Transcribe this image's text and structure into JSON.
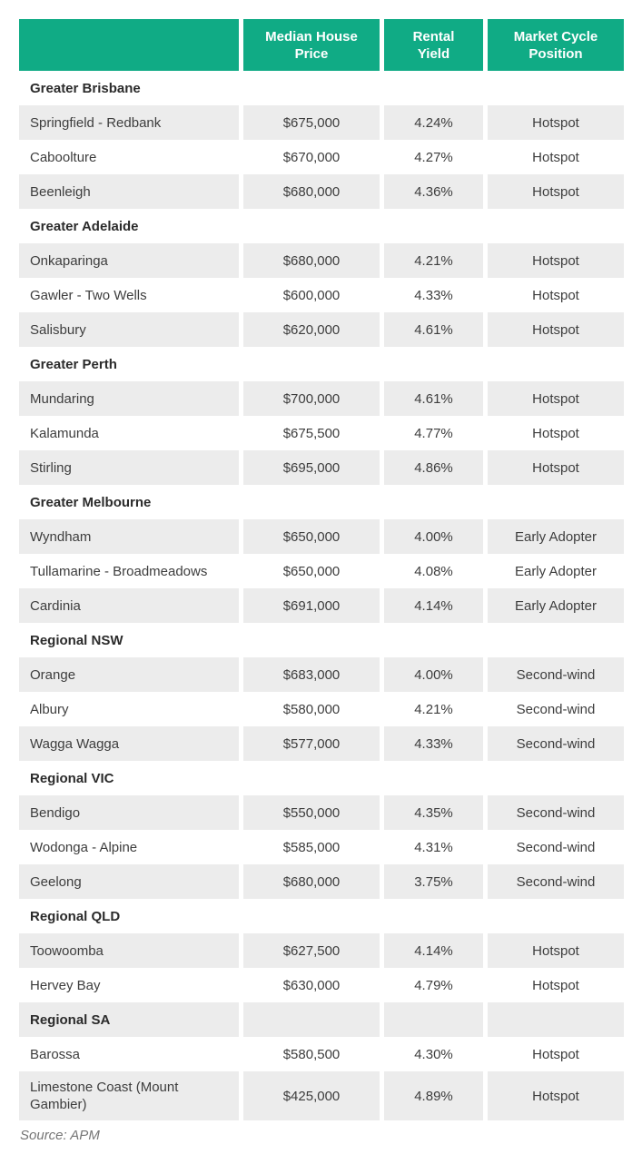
{
  "colors": {
    "header_bg": "#10ab85",
    "header_text": "#ffffff",
    "stripe_bg": "#ececec",
    "group_text": "#2b2b2b",
    "cell_text": "#3d3d3d",
    "source_text": "#757575"
  },
  "chart_data": {
    "type": "table",
    "columns": [
      "",
      "Median House Price",
      "Rental Yield",
      "Market Cycle Position"
    ],
    "groups": [
      {
        "label": "Greater Brisbane",
        "rows": [
          {
            "name": "Springfield - Redbank",
            "price": "$675,000",
            "yield": "4.24%",
            "position": "Hotspot"
          },
          {
            "name": "Caboolture",
            "price": "$670,000",
            "yield": "4.27%",
            "position": "Hotspot"
          },
          {
            "name": "Beenleigh",
            "price": "$680,000",
            "yield": "4.36%",
            "position": "Hotspot"
          }
        ]
      },
      {
        "label": "Greater Adelaide",
        "rows": [
          {
            "name": "Onkaparinga",
            "price": "$680,000",
            "yield": "4.21%",
            "position": "Hotspot"
          },
          {
            "name": "Gawler - Two Wells",
            "price": "$600,000",
            "yield": "4.33%",
            "position": "Hotspot"
          },
          {
            "name": "Salisbury",
            "price": "$620,000",
            "yield": "4.61%",
            "position": "Hotspot"
          }
        ]
      },
      {
        "label": "Greater Perth",
        "rows": [
          {
            "name": "Mundaring",
            "price": "$700,000",
            "yield": "4.61%",
            "position": "Hotspot"
          },
          {
            "name": "Kalamunda",
            "price": "$675,500",
            "yield": "4.77%",
            "position": "Hotspot"
          },
          {
            "name": "Stirling",
            "price": "$695,000",
            "yield": "4.86%",
            "position": "Hotspot"
          }
        ]
      },
      {
        "label": "Greater Melbourne",
        "rows": [
          {
            "name": "Wyndham",
            "price": "$650,000",
            "yield": "4.00%",
            "position": "Early Adopter"
          },
          {
            "name": "Tullamarine - Broadmeadows",
            "price": "$650,000",
            "yield": "4.08%",
            "position": "Early Adopter"
          },
          {
            "name": "Cardinia",
            "price": "$691,000",
            "yield": "4.14%",
            "position": "Early Adopter"
          }
        ]
      },
      {
        "label": "Regional NSW",
        "rows": [
          {
            "name": "Orange",
            "price": "$683,000",
            "yield": "4.00%",
            "position": "Second-wind"
          },
          {
            "name": "Albury",
            "price": "$580,000",
            "yield": "4.21%",
            "position": "Second-wind"
          },
          {
            "name": "Wagga Wagga",
            "price": "$577,000",
            "yield": "4.33%",
            "position": "Second-wind"
          }
        ]
      },
      {
        "label": "Regional VIC",
        "rows": [
          {
            "name": "Bendigo",
            "price": "$550,000",
            "yield": "4.35%",
            "position": "Second-wind"
          },
          {
            "name": "Wodonga - Alpine",
            "price": "$585,000",
            "yield": "4.31%",
            "position": "Second-wind"
          },
          {
            "name": "Geelong",
            "price": "$680,000",
            "yield": "3.75%",
            "position": "Second-wind"
          }
        ]
      },
      {
        "label": "Regional QLD",
        "rows": [
          {
            "name": "Toowoomba",
            "price": "$627,500",
            "yield": "4.14%",
            "position": "Hotspot"
          },
          {
            "name": "Hervey Bay",
            "price": "$630,000",
            "yield": "4.79%",
            "position": "Hotspot"
          }
        ]
      },
      {
        "label": "Regional SA",
        "rows": [
          {
            "name": "Barossa",
            "price": "$580,500",
            "yield": "4.30%",
            "position": "Hotspot"
          },
          {
            "name": "Limestone Coast (Mount Gambier)",
            "price": "$425,000",
            "yield": "4.89%",
            "position": "Hotspot"
          }
        ]
      }
    ],
    "source": "Source: APM"
  }
}
